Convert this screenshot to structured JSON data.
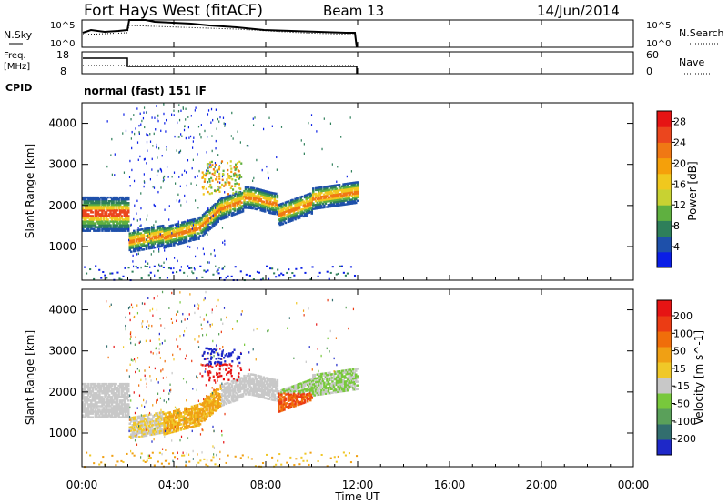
{
  "header": {
    "station": "Fort Hays West (fitACF)",
    "beam": "Beam 13",
    "date": "14/Jun/2014"
  },
  "noise_panel": {
    "left_label": "N.Sky",
    "right_label": "N.Search",
    "left_ticks": [
      "10^5",
      "10^0"
    ],
    "right_ticks": [
      "10^5",
      "10^0"
    ]
  },
  "freq_panel": {
    "left_label_line1": "Freq.",
    "left_label_line2": "[MHz]",
    "left_ticks": [
      "18",
      "8"
    ],
    "right_label": "Nave",
    "right_ticks": [
      "60",
      "0"
    ]
  },
  "cpid": {
    "label": "CPID",
    "value": "normal (fast) 151 IF"
  },
  "chart_data": [
    {
      "type": "heatmap",
      "name": "power",
      "ylabel": "Slant Range [km]",
      "xlabel": "Time UT",
      "x_unit": "hours UT",
      "xlim": [
        0,
        24
      ],
      "ylim": [
        180,
        4500
      ],
      "yticks": [
        "1000",
        "2000",
        "3000",
        "4000"
      ],
      "colorbar": {
        "label": "Power [dB]",
        "ticks": [
          "4",
          "8",
          "12",
          "16",
          "20",
          "24",
          "28"
        ],
        "range": [
          0,
          30
        ]
      }
    },
    {
      "type": "heatmap",
      "name": "velocity",
      "ylabel": "Slant Range [km]",
      "xlabel": "Time UT",
      "x_unit": "hours UT",
      "xlim": [
        0,
        24
      ],
      "ylim": [
        180,
        4500
      ],
      "yticks": [
        "1000",
        "2000",
        "3000",
        "4000"
      ],
      "colorbar": {
        "label": "Velocity [m s^-1]",
        "ticks": [
          "200",
          "100",
          "50",
          "15",
          "-15",
          "-50",
          "-100",
          "-200"
        ]
      }
    }
  ],
  "x_axis": {
    "ticks": [
      "00:00",
      "04:00",
      "08:00",
      "12:00",
      "16:00",
      "20:00",
      "00:00"
    ],
    "label": "Time UT"
  },
  "colors": {
    "power_scale": [
      "#0a1ee6",
      "#1e50aa",
      "#2e7f5a",
      "#5fb040",
      "#c8d232",
      "#f0c81e",
      "#f5a00a",
      "#f07814",
      "#eb461e",
      "#e61414"
    ],
    "velocity_scale": [
      "#1e28c8",
      "#326e6e",
      "#5aa05a",
      "#78c83c",
      "#c8c8c8",
      "#f0c828",
      "#f0a014",
      "#f06e0a",
      "#eb3c14",
      "#e61414"
    ]
  }
}
